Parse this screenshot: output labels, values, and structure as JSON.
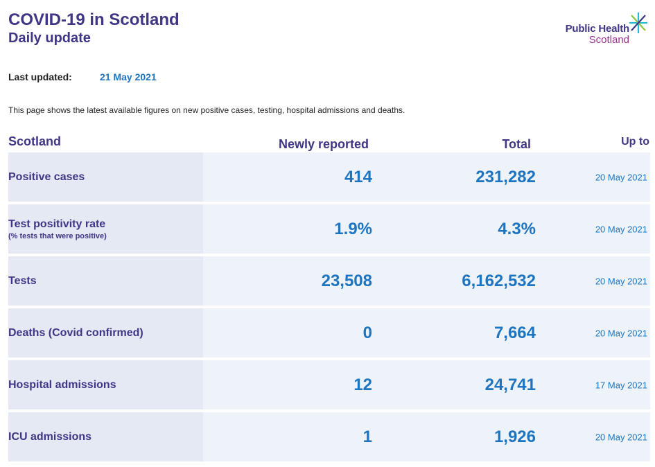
{
  "header": {
    "title": "COVID-19 in Scotland",
    "subtitle": "Daily update"
  },
  "logo": {
    "line1": "Public Health",
    "line2": "Scotland",
    "icon": "star-icon"
  },
  "updated": {
    "label": "Last updated:",
    "value": "21 May 2021"
  },
  "intro": "This page shows the latest available figures on new positive cases, testing, hospital admissions and deaths.",
  "table": {
    "headers": {
      "region": "Scotland",
      "new": "Newly reported",
      "total": "Total",
      "upto": "Up to"
    },
    "rows": [
      {
        "label": "Positive cases",
        "sublabel": "",
        "new": "414",
        "total": "231,282",
        "date": "20 May 2021"
      },
      {
        "label": "Test positivity rate",
        "sublabel": "(% tests that were positive)",
        "new": "1.9%",
        "total": "4.3%",
        "date": "20 May 2021"
      },
      {
        "label": "Tests",
        "sublabel": "",
        "new": "23,508",
        "total": "6,162,532",
        "date": "20 May 2021"
      },
      {
        "label": "Deaths (Covid confirmed)",
        "sublabel": "",
        "new": "0",
        "total": "7,664",
        "date": "20 May 2021"
      },
      {
        "label": "Hospital admissions",
        "sublabel": "",
        "new": "12",
        "total": "24,741",
        "date": "17 May 2021"
      },
      {
        "label": "ICU admissions",
        "sublabel": "",
        "new": "1",
        "total": "1,926",
        "date": "20 May 2021"
      }
    ]
  },
  "colors": {
    "purple": "#3f3685",
    "blue": "#1d74c0",
    "magenta": "#9b2f8e",
    "teal": "#2bb5c9",
    "green": "#8dc63f"
  }
}
